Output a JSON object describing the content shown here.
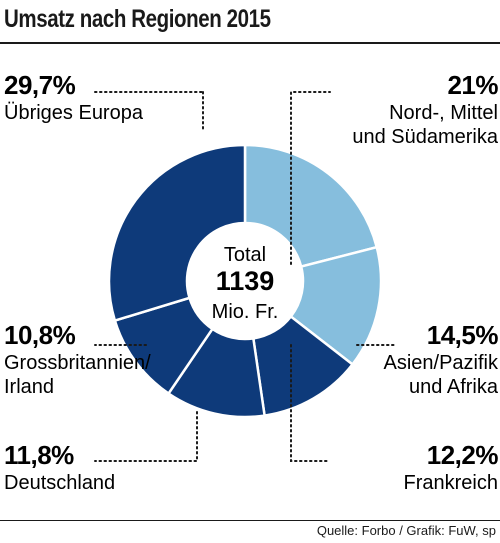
{
  "header": {
    "title": "Umsatz nach Regionen 2015"
  },
  "footer": {
    "source": "Quelle: Forbo / Grafik: FuW, sp"
  },
  "colors": {
    "light_blue": "#86bedd",
    "dark_blue": "#0e3a7a",
    "separator": "#ffffff"
  },
  "chart_data": {
    "type": "pie",
    "title": "Umsatz nach Regionen 2015",
    "center_text": [
      "Total",
      "1139",
      "Mio. Fr."
    ],
    "total": 1139,
    "unit": "Mio. Fr.",
    "slices": [
      {
        "label": "Nord-, Mittel und Südamerika",
        "label_lines": [
          "Nord-, Mittel",
          "und Südamerika"
        ],
        "value": 21.0,
        "value_label": "21%",
        "color": "#86bedd",
        "side": "right"
      },
      {
        "label": "Asien/Pazifik und Afrika",
        "label_lines": [
          "Asien/Pazifik",
          "und Afrika"
        ],
        "value": 14.5,
        "value_label": "14,5%",
        "color": "#86bedd",
        "side": "right"
      },
      {
        "label": "Frankreich",
        "label_lines": [
          "Frankreich"
        ],
        "value": 12.2,
        "value_label": "12,2%",
        "color": "#0e3a7a",
        "side": "right"
      },
      {
        "label": "Deutschland",
        "label_lines": [
          "Deutschland"
        ],
        "value": 11.8,
        "value_label": "11,8%",
        "color": "#0e3a7a",
        "side": "left"
      },
      {
        "label": "Grossbritannien/Irland",
        "label_lines": [
          "Grossbritannien/",
          "Irland"
        ],
        "value": 10.8,
        "value_label": "10,8%",
        "color": "#0e3a7a",
        "side": "left"
      },
      {
        "label": "Übriges Europa",
        "label_lines": [
          "Übriges Europa"
        ],
        "value": 29.7,
        "value_label": "29,7%",
        "color": "#0e3a7a",
        "side": "left"
      }
    ]
  }
}
